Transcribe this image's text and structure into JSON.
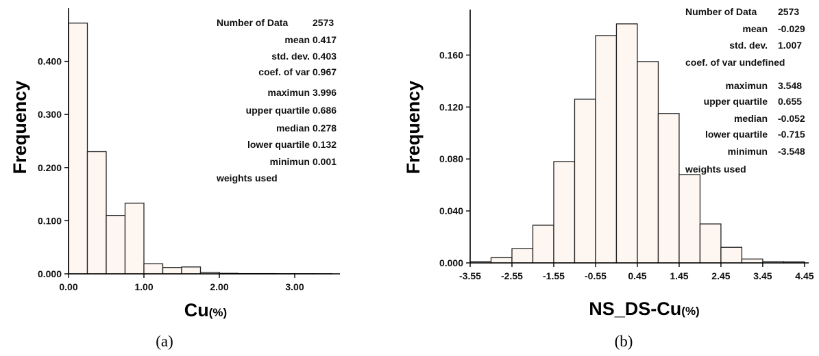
{
  "captions": [
    "(a)",
    "(b)"
  ],
  "chart_data": [
    {
      "type": "bar",
      "xlabel": "Cu",
      "xlabel_unit": "(%)",
      "ylabel": "Frequency",
      "xlim": [
        0,
        3.6
      ],
      "ylim": [
        0,
        0.5
      ],
      "x_ticks": [
        {
          "value": 0,
          "label": "0.00"
        },
        {
          "value": 1,
          "label": "1.00"
        },
        {
          "value": 2,
          "label": "2.00"
        },
        {
          "value": 3,
          "label": "3.00"
        }
      ],
      "y_ticks": [
        {
          "value": 0,
          "label": "0.000"
        },
        {
          "value": 0.1,
          "label": "0.100"
        },
        {
          "value": 0.2,
          "label": "0.200"
        },
        {
          "value": 0.3,
          "label": "0.300"
        },
        {
          "value": 0.4,
          "label": "0.400"
        }
      ],
      "bin_edges": [
        0,
        0.25,
        0.5,
        0.75,
        1.0,
        1.25,
        1.5,
        1.75,
        2.0,
        2.25,
        2.5,
        2.75,
        3.0,
        3.25,
        3.5
      ],
      "values": [
        0.472,
        0.23,
        0.11,
        0.133,
        0.019,
        0.012,
        0.013,
        0.003,
        0.001,
        0.0005,
        0.0005,
        0.0003,
        0.0003,
        0.0002
      ],
      "stats_align": "split",
      "stats": [
        {
          "label": "Number of Data",
          "value": "2573"
        },
        {
          "label": "mean",
          "value": "0.417"
        },
        {
          "label": "std. dev.",
          "value": "0.403"
        },
        {
          "label": "coef. of var",
          "value": "0.967"
        },
        {
          "label": "maximun",
          "value": "3.996"
        },
        {
          "label": "upper quartile",
          "value": "0.686"
        },
        {
          "label": "median",
          "value": "0.278"
        },
        {
          "label": "lower quartile",
          "value": "0.132"
        },
        {
          "label": "minimun",
          "value": "0.001"
        },
        {
          "label": "weights used",
          "value": ""
        }
      ]
    },
    {
      "type": "bar",
      "xlabel": "NS_DS-Cu",
      "xlabel_unit": "(%)",
      "ylabel": "Frequency",
      "xlim": [
        -3.55,
        4.55
      ],
      "ylim": [
        0,
        0.195
      ],
      "x_ticks": [
        {
          "value": -3.55,
          "label": "-3.55"
        },
        {
          "value": -2.55,
          "label": "-2.55"
        },
        {
          "value": -1.55,
          "label": "-1.55"
        },
        {
          "value": -0.55,
          "label": "-0.55"
        },
        {
          "value": 0.45,
          "label": "0.45"
        },
        {
          "value": 1.45,
          "label": "1.45"
        },
        {
          "value": 2.45,
          "label": "2.45"
        },
        {
          "value": 3.45,
          "label": "3.45"
        },
        {
          "value": 4.45,
          "label": "4.45"
        }
      ],
      "y_ticks": [
        {
          "value": 0,
          "label": "0.000"
        },
        {
          "value": 0.04,
          "label": "0.040"
        },
        {
          "value": 0.08,
          "label": "0.080"
        },
        {
          "value": 0.12,
          "label": "0.120"
        },
        {
          "value": 0.16,
          "label": "0.160"
        }
      ],
      "bin_edges": [
        -3.55,
        -3.05,
        -2.55,
        -2.05,
        -1.55,
        -1.05,
        -0.55,
        -0.05,
        0.45,
        0.95,
        1.45,
        1.95,
        2.45,
        2.95,
        3.45,
        3.95,
        4.45
      ],
      "values": [
        0.001,
        0.004,
        0.011,
        0.029,
        0.078,
        0.126,
        0.175,
        0.184,
        0.155,
        0.115,
        0.068,
        0.03,
        0.012,
        0.003,
        0.001,
        0.0008
      ],
      "stats_align": "table",
      "stats": [
        {
          "label": "Number of Data",
          "value": "2573"
        },
        {
          "label": "mean",
          "value": "-0.029"
        },
        {
          "label": "std. dev.",
          "value": "1.007"
        },
        {
          "label": "coef. of var undefined",
          "value": ""
        },
        {
          "label": "maximun",
          "value": "3.548"
        },
        {
          "label": "upper quartile",
          "value": "0.655"
        },
        {
          "label": "median",
          "value": "-0.052"
        },
        {
          "label": "lower quartile",
          "value": "-0.715"
        },
        {
          "label": "minimun",
          "value": "-3.548"
        },
        {
          "label": "weights used",
          "value": ""
        }
      ]
    }
  ]
}
